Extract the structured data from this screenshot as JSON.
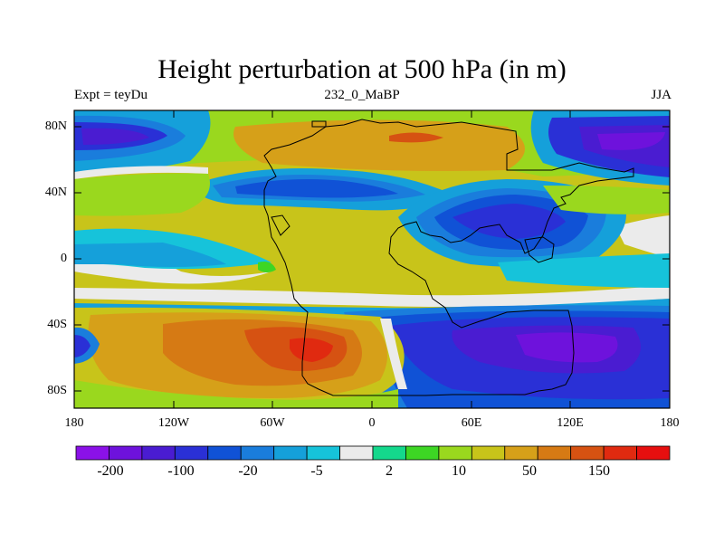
{
  "title": "Height perturbation at 500 hPa (in m)",
  "subtitle_left": "Expt = teyDu",
  "subtitle_center": "232_0_MaBP",
  "subtitle_right": "JJA",
  "y_ticks": [
    "80N",
    "40N",
    "0",
    "40S",
    "80S"
  ],
  "x_ticks": [
    "180",
    "120W",
    "60W",
    "0",
    "60E",
    "120E",
    "180"
  ],
  "colorbar": {
    "labels": [
      "-200",
      "-100",
      "-20",
      "-5",
      "2",
      "10",
      "50",
      "150"
    ],
    "colors": [
      "#8b11e8",
      "#6e12dc",
      "#4a1cd1",
      "#2a30d6",
      "#1052d6",
      "#1a7ddc",
      "#15a0da",
      "#16c3da",
      "#ebebeb",
      "#14d88c",
      "#3dd624",
      "#9ad81e",
      "#c8c41a",
      "#d6a019",
      "#d67a14",
      "#d65212",
      "#e02a10",
      "#e60f0f"
    ]
  },
  "colors": {
    "land_outline": "#000000",
    "white_band": "#f2f2f2"
  }
}
